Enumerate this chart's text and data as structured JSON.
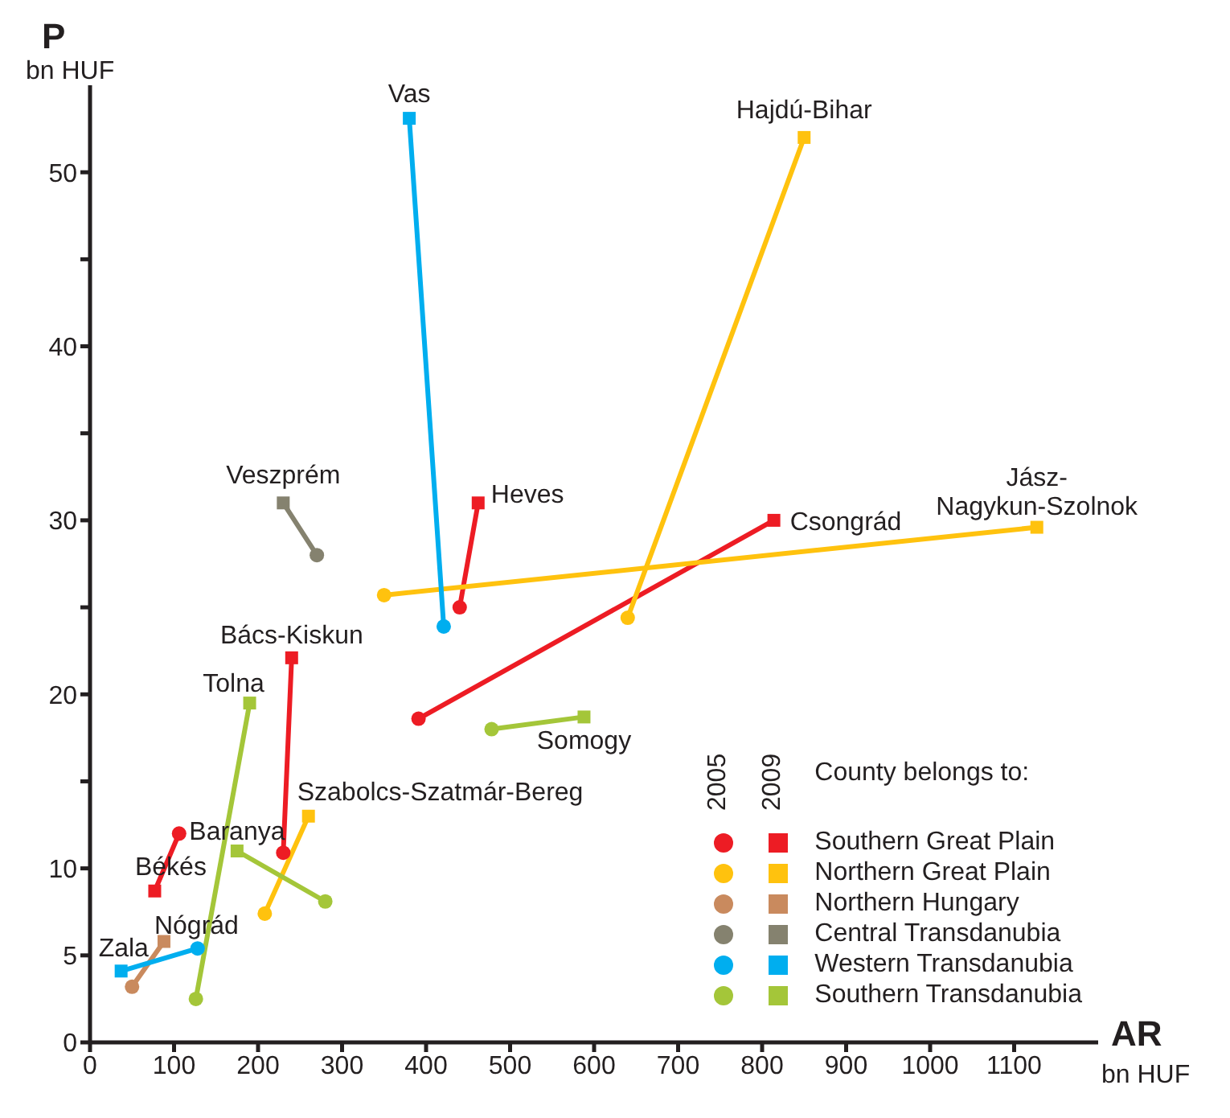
{
  "chart_data": {
    "type": "scatter",
    "xlabel": "AR",
    "ylabel": "P",
    "legend_title": "County belongs to:",
    "annotations": [
      "bn HUF",
      "bn HUF",
      "2005",
      "2009"
    ],
    "xlim": [
      0,
      1200
    ],
    "xticks": [
      0,
      100,
      200,
      300,
      400,
      500,
      600,
      700,
      800,
      900,
      1000,
      1100
    ],
    "ylim": [
      0,
      55
    ],
    "yticks": [
      0,
      5,
      10,
      {
        "value": 15,
        "label": null
      },
      20,
      {
        "value": 25,
        "label": null
      },
      30,
      {
        "value": 35,
        "label": null
      },
      40,
      {
        "value": 45,
        "label": null
      },
      50
    ],
    "grid": false,
    "legend": "bottom right",
    "series": [
      {
        "name": "Bács-Kiskun",
        "type": "line",
        "marker": "none",
        "color": "#ed1c24",
        "x": [
          230,
          240
        ],
        "values": [
          10.9,
          22.1
        ]
      },
      {
        "name": "Békés",
        "type": "line",
        "marker": "none",
        "color": "#ed1c24",
        "x": [
          106,
          77
        ],
        "values": [
          12,
          8.7
        ]
      },
      {
        "name": "Csongrád",
        "type": "line",
        "marker": "none",
        "color": "#ed1c24",
        "x": [
          391,
          814
        ],
        "values": [
          18.6,
          30
        ]
      },
      {
        "name": "Heves",
        "type": "line",
        "marker": "none",
        "color": "#ed1c24",
        "x": [
          440,
          462
        ],
        "values": [
          25,
          31
        ]
      },
      {
        "name": "Hajdú-Bihar",
        "type": "line",
        "marker": "none",
        "color": "#ffc20e",
        "x": [
          640,
          850
        ],
        "values": [
          24.4,
          52
        ]
      },
      {
        "name": "Jász-Nagykun-Szolnok",
        "type": "line",
        "marker": "none",
        "color": "#ffc20e",
        "x": [
          350,
          1127
        ],
        "values": [
          25.7,
          29.6
        ]
      },
      {
        "name": "Szabolcs-Szatmár-Bereg",
        "type": "line",
        "marker": "none",
        "color": "#ffc20e",
        "x": [
          208,
          260
        ],
        "values": [
          7.4,
          13
        ]
      },
      {
        "name": "Nógrád",
        "type": "line",
        "marker": "none",
        "color": "#c98a5e",
        "x": [
          50,
          88
        ],
        "values": [
          3.2,
          5.8
        ]
      },
      {
        "name": "Veszprém",
        "type": "line",
        "marker": "none",
        "color": "#85826f",
        "x": [
          270,
          230
        ],
        "values": [
          28,
          31
        ]
      },
      {
        "name": "Vas",
        "type": "line",
        "marker": "none",
        "color": "#00aeef",
        "x": [
          421,
          380
        ],
        "values": [
          23.9,
          53.1
        ]
      },
      {
        "name": "Zala",
        "type": "line",
        "marker": "none",
        "color": "#00aeef",
        "x": [
          128,
          37
        ],
        "values": [
          5.4,
          4.1
        ]
      },
      {
        "name": "Tolna",
        "type": "line",
        "marker": "none",
        "color": "#a4c639",
        "x": [
          126,
          190
        ],
        "values": [
          2.5,
          19.5
        ]
      },
      {
        "name": "Baranya",
        "type": "line",
        "marker": "none",
        "color": "#a4c639",
        "x": [
          280,
          175
        ],
        "values": [
          8.1,
          11
        ]
      },
      {
        "name": "Somogy",
        "type": "line",
        "marker": "none",
        "color": "#a4c639",
        "x": [
          478,
          588
        ],
        "values": [
          18,
          18.7
        ]
      },
      {
        "marker": "circle",
        "color": "#ed1c24",
        "x": [
          230,
          106,
          391,
          440
        ],
        "values": [
          10.9,
          12,
          18.6,
          25
        ]
      },
      {
        "name": "Southern Great Plain",
        "marker": "square",
        "color": "#ed1c24",
        "x": [
          240,
          77,
          814,
          462
        ],
        "values": [
          22.1,
          8.7,
          30,
          31
        ]
      },
      {
        "marker": "circle",
        "color": "#ffc20e",
        "x": [
          640,
          350,
          208
        ],
        "values": [
          24.4,
          25.7,
          7.4
        ]
      },
      {
        "name": "Northern Great Plain",
        "marker": "square",
        "color": "#ffc20e",
        "x": [
          850,
          1127,
          260
        ],
        "values": [
          52,
          29.6,
          13
        ]
      },
      {
        "marker": "circle",
        "color": "#c98a5e",
        "x": [
          50
        ],
        "values": [
          3.2
        ]
      },
      {
        "name": "Northern Hungary",
        "marker": "square",
        "color": "#c98a5e",
        "x": [
          88
        ],
        "values": [
          5.8
        ]
      },
      {
        "marker": "circle",
        "color": "#85826f",
        "x": [
          270
        ],
        "values": [
          28
        ]
      },
      {
        "name": "Central Transdanubia",
        "marker": "square",
        "color": "#85826f",
        "x": [
          230
        ],
        "values": [
          31
        ]
      },
      {
        "marker": "circle",
        "color": "#00aeef",
        "x": [
          421,
          128
        ],
        "values": [
          23.9,
          5.4
        ]
      },
      {
        "name": "Western Transdanubia",
        "marker": "square",
        "color": "#00aeef",
        "x": [
          380,
          37
        ],
        "values": [
          53.1,
          4.1
        ]
      },
      {
        "marker": "circle",
        "color": "#a4c639",
        "x": [
          126,
          280,
          478
        ],
        "values": [
          2.5,
          8.1,
          18
        ]
      },
      {
        "name": "Southern Transdanubia",
        "marker": "square",
        "color": "#a4c639",
        "x": [
          190,
          175,
          588
        ],
        "values": [
          19.5,
          11,
          18.7
        ]
      }
    ]
  }
}
